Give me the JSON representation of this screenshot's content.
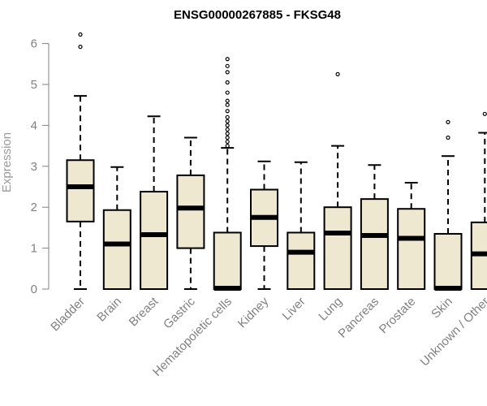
{
  "chart_data": {
    "type": "boxplot",
    "title": "ENSG00000267885 - FKSG48",
    "xlabel": "",
    "ylabel": "Expression",
    "ylim": [
      0,
      6.2
    ],
    "yticks": [
      "0",
      "1",
      "2",
      "3",
      "4",
      "5",
      "6"
    ],
    "box_fill": "#efe8d0",
    "box_stroke": "#000000",
    "categories": [
      "Bladder",
      "Brain",
      "Breast",
      "Gastric",
      "Hematopoietic cells",
      "Kidney",
      "Liver",
      "Lung",
      "Pancreas",
      "Prostate",
      "Skin",
      "Unknown / Other"
    ],
    "boxes": [
      {
        "min": 0,
        "q1": 1.65,
        "median": 2.5,
        "q3": 3.15,
        "max": 4.72,
        "outliers": [
          5.92,
          6.22
        ]
      },
      {
        "min": 0,
        "q1": 0,
        "median": 1.1,
        "q3": 1.93,
        "max": 2.98,
        "outliers": []
      },
      {
        "min": 0,
        "q1": 0,
        "median": 1.33,
        "q3": 2.38,
        "max": 4.22,
        "outliers": []
      },
      {
        "min": 0,
        "q1": 1.0,
        "median": 1.98,
        "q3": 2.78,
        "max": 3.7,
        "outliers": []
      },
      {
        "min": 0,
        "q1": 0,
        "median": 0.02,
        "q3": 1.38,
        "max": 3.45,
        "outliers": [
          3.5,
          3.6,
          3.7,
          3.8,
          3.9,
          4.0,
          4.1,
          4.2,
          4.35,
          4.5,
          4.6,
          4.8,
          5.05,
          5.3,
          5.45,
          5.62
        ]
      },
      {
        "min": 0,
        "q1": 1.05,
        "median": 1.75,
        "q3": 2.43,
        "max": 3.12,
        "outliers": []
      },
      {
        "min": 0,
        "q1": 0,
        "median": 0.9,
        "q3": 1.38,
        "max": 3.1,
        "outliers": []
      },
      {
        "min": 0,
        "q1": 0,
        "median": 1.37,
        "q3": 2.0,
        "max": 3.5,
        "outliers": [
          5.25
        ]
      },
      {
        "min": 0,
        "q1": 0,
        "median": 1.31,
        "q3": 2.2,
        "max": 3.03,
        "outliers": []
      },
      {
        "min": 0,
        "q1": 0,
        "median": 1.24,
        "q3": 1.96,
        "max": 2.6,
        "outliers": []
      },
      {
        "min": 0,
        "q1": 0,
        "median": 0.02,
        "q3": 1.35,
        "max": 3.25,
        "outliers": [
          3.7,
          4.08
        ]
      },
      {
        "min": 0,
        "q1": 0,
        "median": 0.86,
        "q3": 1.63,
        "max": 3.82,
        "outliers": [
          4.28
        ]
      }
    ]
  }
}
